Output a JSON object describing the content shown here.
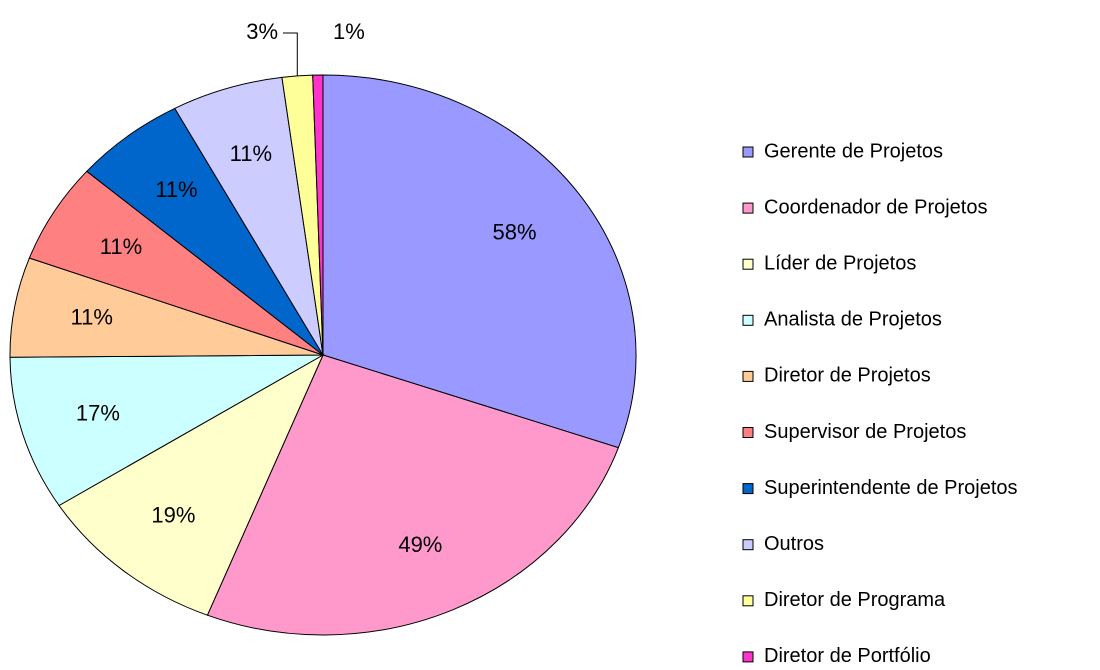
{
  "chart_data": {
    "type": "pie",
    "categories": [
      "Gerente de Projetos",
      "Coordenador de Projetos",
      "Líder de Projetos",
      "Analista de Projetos",
      "Diretor de Projetos",
      "Supervisor de Projetos",
      "Superintendente de Projetos",
      "Outros",
      "Diretor de Programa",
      "Diretor de Portfólio"
    ],
    "values": [
      58,
      49,
      19,
      17,
      11,
      11,
      11,
      11,
      3,
      1
    ],
    "value_labels": [
      "58%",
      "49%",
      "19%",
      "17%",
      "11%",
      "11%",
      "11%",
      "11%",
      "3%",
      "1%"
    ],
    "colors": [
      "#9999ff",
      "#ff99cc",
      "#ffffcc",
      "#ccffff",
      "#ffcc99",
      "#ff8080",
      "#0066cc",
      "#ccccff",
      "#ffff99",
      "#ff33cc"
    ],
    "legend": "right"
  }
}
